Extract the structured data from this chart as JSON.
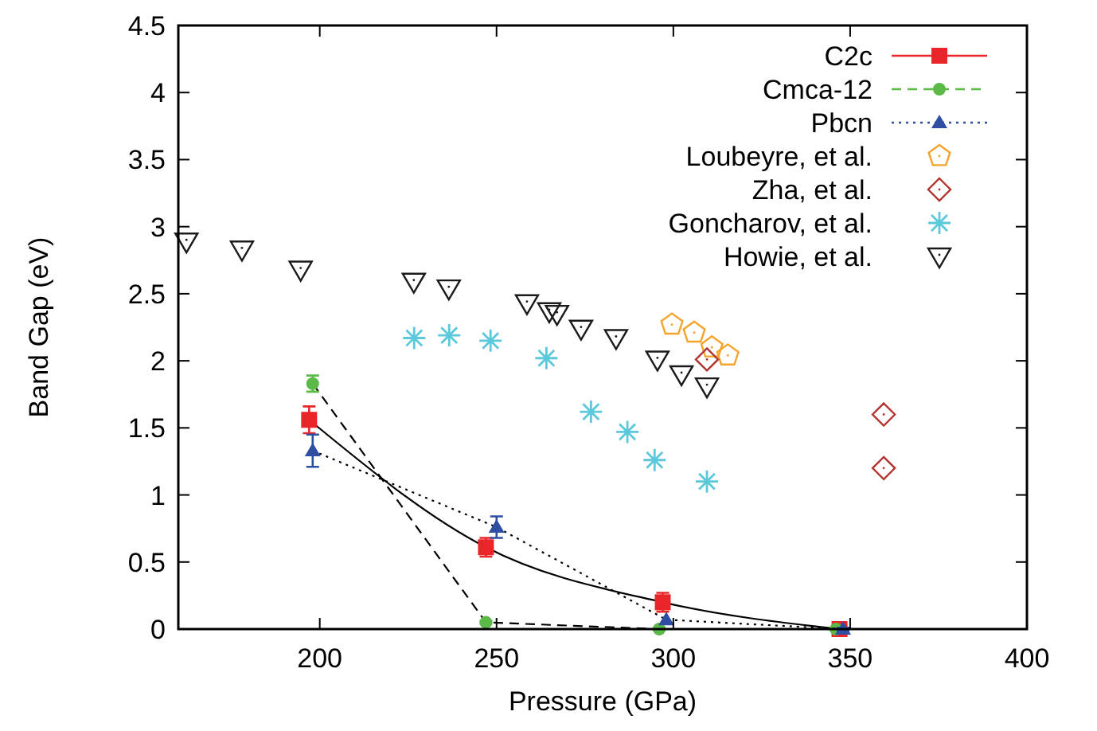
{
  "chart_data": {
    "type": "scatter",
    "xlabel": "Pressure (GPa)",
    "ylabel": "Band Gap (eV)",
    "xlim": [
      160,
      400
    ],
    "xticks": [
      200,
      250,
      300,
      350,
      400
    ],
    "ylim": [
      0,
      4.5
    ],
    "yticks": [
      0,
      0.5,
      1,
      1.5,
      2,
      2.5,
      3,
      3.5,
      4,
      4.5
    ],
    "grid": false,
    "legend": "top right",
    "series": [
      {
        "name": "C2c",
        "type": "line",
        "color": "#e8262a",
        "marker": "square",
        "line_style": "solid",
        "x": [
          197,
          247,
          297,
          347
        ],
        "values": [
          1.56,
          0.61,
          0.2,
          0
        ],
        "errors": [
          0.1,
          0.07,
          0.07,
          0.01
        ]
      },
      {
        "name": "Cmca-12",
        "type": "line",
        "color": "#5bb947",
        "marker": "circle",
        "line_style": "dashed",
        "x": [
          198,
          247,
          296,
          346
        ],
        "values": [
          1.83,
          0.05,
          0,
          0
        ],
        "errors": [
          0.06,
          0.01,
          0.01,
          0.01
        ]
      },
      {
        "name": "Pbcn",
        "type": "line",
        "color": "#2e4ea1",
        "marker": "triangle",
        "line_style": "dotted",
        "x": [
          198,
          250,
          298,
          348
        ],
        "values": [
          1.33,
          0.76,
          0.07,
          0
        ],
        "errors": [
          0.12,
          0.08,
          null,
          0.01
        ]
      },
      {
        "name": "Loubeyre, et al.",
        "color": "#f4a42a",
        "x": [
          299.6,
          305.9,
          310.9,
          315.4
        ],
        "values": [
          2.27,
          2.21,
          2.1,
          2.04
        ]
      },
      {
        "name": "Zha, et al.",
        "color": "#b2332f",
        "marker": "diamond",
        "x": [
          309.5,
          359.5,
          359.5
        ],
        "values": [
          2.01,
          1.6,
          1.2
        ]
      },
      {
        "name": "Goncharov, et al.",
        "color": "#5bc8dc",
        "marker": "cross",
        "x": [
          226.7,
          236.6,
          248.3,
          264.1,
          276.7,
          287,
          294.7,
          309.5
        ],
        "values": [
          2.17,
          2.19,
          2.15,
          2.02,
          1.62,
          1.47,
          1.26,
          1.1
        ]
      },
      {
        "name": "Howie, et al.",
        "color": "#1a1a1a",
        "marker": "triangle-down",
        "x": [
          162.3,
          178,
          194.6,
          226.6,
          236.5,
          258.6,
          264.9,
          267.1,
          273.9,
          283.8,
          295.5,
          302.3,
          309.5
        ],
        "values": [
          2.89,
          2.83,
          2.68,
          2.59,
          2.54,
          2.43,
          2.37,
          2.35,
          2.24,
          2.17,
          2.01,
          1.9,
          1.81
        ]
      }
    ]
  }
}
